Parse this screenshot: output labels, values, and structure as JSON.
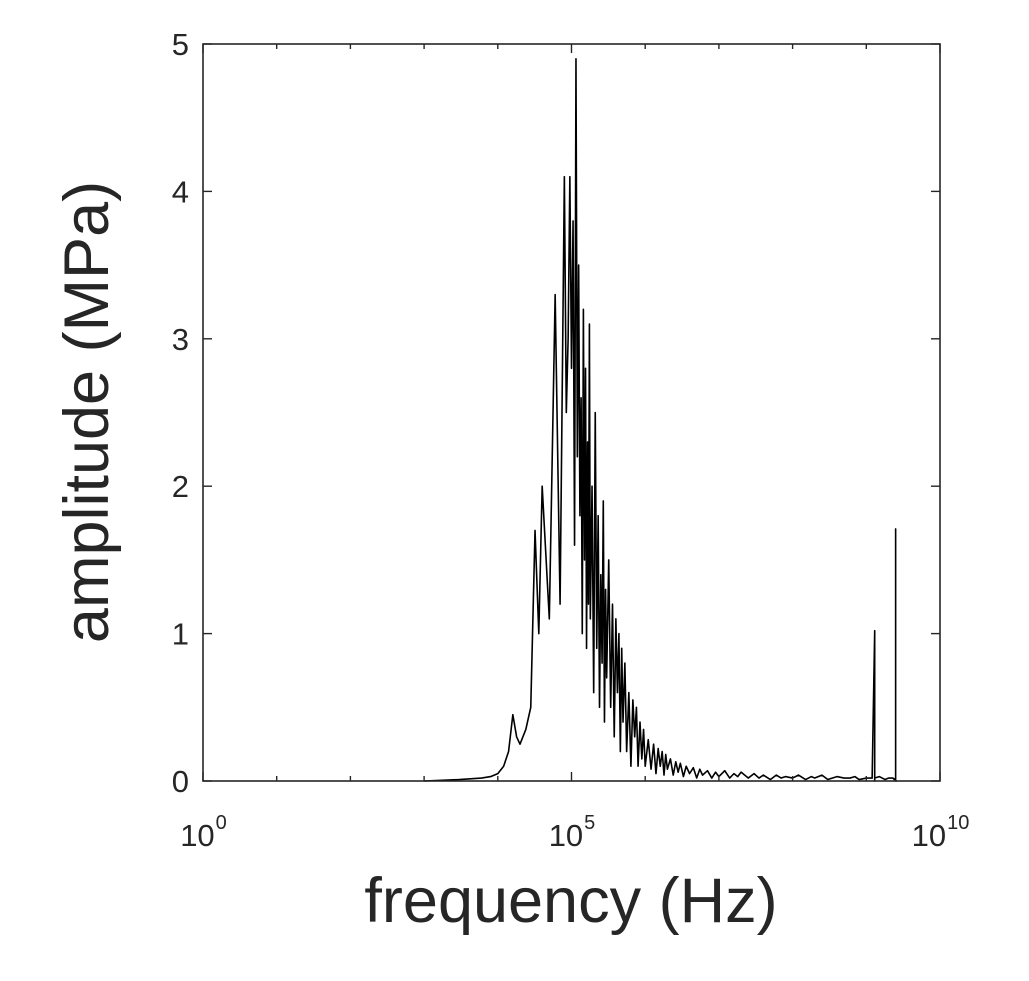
{
  "chart_data": {
    "type": "line",
    "title": "",
    "xlabel": "frequency (Hz)",
    "ylabel": "amplitude (MPa)",
    "xscale": "log",
    "xlim": [
      1,
      10000000000
    ],
    "ylim": [
      0,
      5
    ],
    "xticks": [
      {
        "value": 1,
        "base": "10",
        "exp": "0"
      },
      {
        "value": 100000,
        "base": "10",
        "exp": "5"
      },
      {
        "value": 10000000000,
        "base": "10",
        "exp": "10"
      }
    ],
    "yticks": [
      "0",
      "1",
      "2",
      "3",
      "4",
      "5"
    ],
    "grid": false,
    "legend": "none",
    "line_color": "#000000",
    "series": [
      {
        "x": [
          1000,
          3000,
          6000,
          8000,
          10000,
          12000,
          14000,
          16000,
          18000,
          20000,
          24000,
          28000,
          32000,
          36000,
          40000,
          50000,
          60000,
          70000,
          80000,
          85000,
          90000,
          95000,
          100000,
          105000,
          110000,
          115000,
          120000,
          125000,
          130000,
          135000,
          140000,
          145000,
          150000,
          155000,
          160000,
          165000,
          170000,
          175000,
          180000,
          190000,
          200000,
          210000,
          220000,
          230000,
          240000,
          250000,
          260000,
          270000,
          280000,
          290000,
          300000,
          320000,
          340000,
          360000,
          380000,
          400000,
          420000,
          440000,
          460000,
          480000,
          500000,
          530000,
          560000,
          600000,
          640000,
          680000,
          720000,
          760000,
          800000,
          850000,
          900000,
          950000,
          1000000,
          1100000,
          1200000,
          1300000,
          1400000,
          1500000,
          1600000,
          1700000,
          1800000,
          1900000,
          2000000,
          2200000,
          2400000,
          2600000,
          2800000,
          3000000,
          3300000,
          3600000,
          4000000,
          4500000,
          5000000,
          5500000,
          6000000,
          7000000,
          8000000,
          9000000,
          10000000,
          12000000,
          14000000,
          16000000,
          18000000,
          20000000,
          25000000,
          30000000,
          35000000,
          40000000,
          50000000,
          60000000,
          70000000,
          80000000,
          100000000,
          120000000,
          150000000,
          180000000,
          200000000,
          250000000,
          300000000,
          400000000,
          500000000,
          600000000,
          700000000,
          800000000,
          1000000000,
          1200000000,
          1300000000,
          1300000000,
          1300000000,
          1500000000,
          1800000000,
          2000000000,
          2300000000,
          2400000000,
          2500000000,
          2500000000,
          2500000000,
          2600000000
        ],
        "y": [
          0,
          0.01,
          0.02,
          0.03,
          0.05,
          0.1,
          0.2,
          0.45,
          0.3,
          0.25,
          0.35,
          0.5,
          1.7,
          1.0,
          2.0,
          1.1,
          3.3,
          1.2,
          4.1,
          2.5,
          3.0,
          4.1,
          2.8,
          3.8,
          1.6,
          4.9,
          2.2,
          3.5,
          1.8,
          2.6,
          1.0,
          3.2,
          1.5,
          2.8,
          0.9,
          2.3,
          1.2,
          3.1,
          1.1,
          2.0,
          0.6,
          2.5,
          0.9,
          1.8,
          0.5,
          1.4,
          0.8,
          1.9,
          0.4,
          1.3,
          0.7,
          1.5,
          0.5,
          1.2,
          0.3,
          1.1,
          0.6,
          1.0,
          0.2,
          0.9,
          0.4,
          0.8,
          0.2,
          0.6,
          0.1,
          0.55,
          0.3,
          0.5,
          0.1,
          0.4,
          0.15,
          0.35,
          0.1,
          0.28,
          0.08,
          0.25,
          0.05,
          0.22,
          0.1,
          0.2,
          0.04,
          0.18,
          0.08,
          0.15,
          0.04,
          0.13,
          0.06,
          0.12,
          0.03,
          0.1,
          0.05,
          0.09,
          0.02,
          0.08,
          0.04,
          0.07,
          0.02,
          0.06,
          0.03,
          0.07,
          0.02,
          0.05,
          0.03,
          0.06,
          0.02,
          0.05,
          0.02,
          0.04,
          0.01,
          0.04,
          0.02,
          0.03,
          0.02,
          0.04,
          0.01,
          0.03,
          0.02,
          0.04,
          0.01,
          0.03,
          0.02,
          0.02,
          0.03,
          0.01,
          0.02,
          0.02,
          1.02,
          0.0,
          0.02,
          0.03,
          0.01,
          0.02,
          0.02,
          0.01,
          0.02,
          1.71,
          0.0,
          0.0
        ]
      }
    ]
  }
}
